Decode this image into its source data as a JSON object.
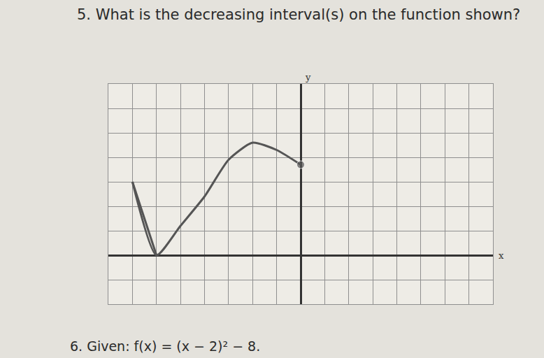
{
  "chart_data": {
    "type": "line",
    "title": "5. What is the decreasing interval(s) on the function shown?",
    "footer": "6. Given: f(x) = (x − 2)² − 8.",
    "x_label": "x",
    "y_label": "y",
    "x": [
      -7,
      -6,
      -5,
      -4,
      -3,
      -2,
      -1,
      0
    ],
    "values": [
      3,
      0,
      1.2,
      2.4,
      3.9,
      4.6,
      4.3,
      3.7
    ],
    "color": "#555555",
    "marker": "closed_end",
    "xlim": [
      -8,
      8
    ],
    "ylim": [
      -2,
      7
    ],
    "xticks": [
      -8,
      -7,
      -6,
      -5,
      -4,
      -3,
      -2,
      -1,
      0,
      1,
      2,
      3,
      4,
      5,
      6,
      7,
      8
    ],
    "yticks": [
      -2,
      -1,
      0,
      1,
      2,
      3,
      4,
      5,
      6,
      7
    ],
    "grid": true,
    "tick_labels": false
  }
}
